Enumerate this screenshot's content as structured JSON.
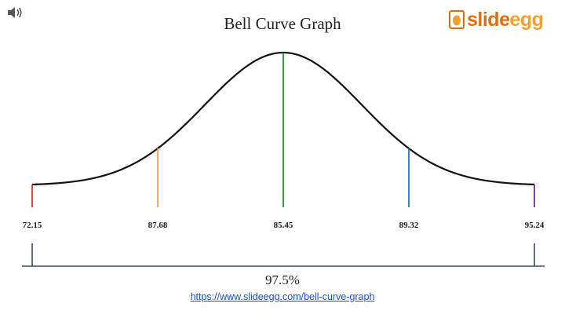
{
  "slide": {
    "title": "Bell Curve Graph",
    "percent_label": "97.5%",
    "source_url": "https://www.slideegg.com/bell-curve-graph",
    "speaker_icon": "speaker-icon"
  },
  "logo": {
    "text_part1": "slide",
    "text_part2": "egg",
    "icon": "egg-logo-icon"
  },
  "chart_data": {
    "type": "line",
    "title": "",
    "markers": [
      {
        "label": "72.15",
        "color": "#e03030"
      },
      {
        "label": "87.68",
        "color": "#f0a030"
      },
      {
        "label": "85.45",
        "color": "#2e8b2e"
      },
      {
        "label": "89.32",
        "color": "#2a6fc0"
      },
      {
        "label": "95.24",
        "color": "#7030a0"
      }
    ],
    "curve": "normal",
    "line_color": "#111111",
    "axis_color": "#3a4a6a",
    "grid": false
  }
}
